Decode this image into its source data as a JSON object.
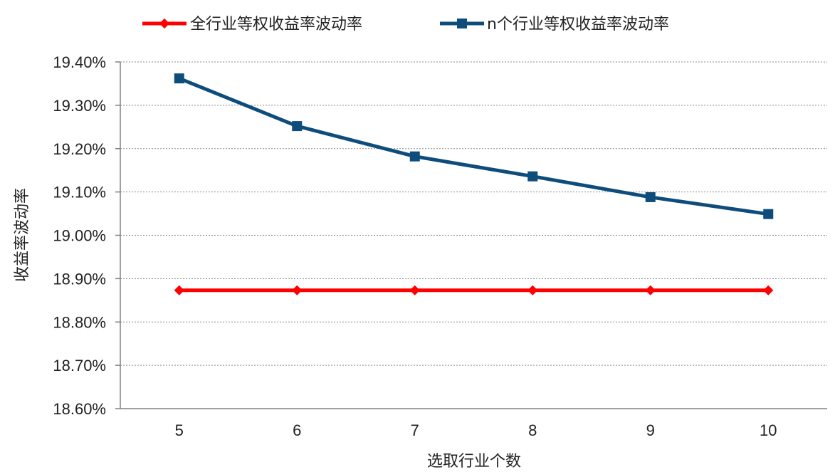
{
  "chart_data": {
    "type": "line",
    "title": "",
    "xlabel": "选取行业个数",
    "ylabel": "收益率波动率",
    "categories": [
      "5",
      "6",
      "7",
      "8",
      "9",
      "10"
    ],
    "ylim": [
      18.6,
      19.4
    ],
    "yticks": [
      "19.40%",
      "19.30%",
      "19.20%",
      "19.10%",
      "19.00%",
      "18.90%",
      "18.80%",
      "18.70%",
      "18.60%"
    ],
    "ytick_values": [
      19.4,
      19.3,
      19.2,
      19.1,
      19.0,
      18.9,
      18.8,
      18.7,
      18.6
    ],
    "grid": "horizontal dotted",
    "legend_position": "top",
    "series": [
      {
        "name": "全行业等权收益率波动率",
        "color": "#ff0000",
        "marker": "diamond",
        "values": [
          18.873,
          18.873,
          18.873,
          18.873,
          18.873,
          18.873
        ]
      },
      {
        "name": "n个行业等权收益率波动率",
        "color": "#0e4d7b",
        "marker": "square",
        "values": [
          19.362,
          19.252,
          19.182,
          19.136,
          19.088,
          19.049
        ]
      }
    ]
  }
}
